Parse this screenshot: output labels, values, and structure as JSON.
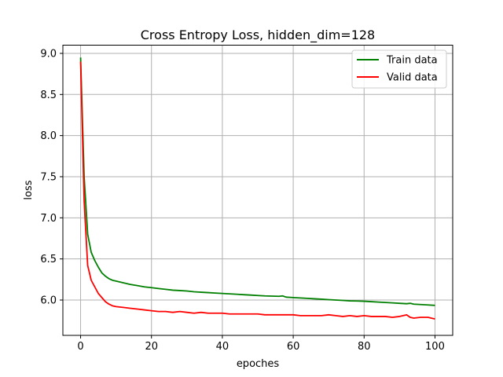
{
  "chart_data": {
    "type": "line",
    "title": "Cross Entropy Loss, hidden_dim=128",
    "xlabel": "epoches",
    "ylabel": "loss",
    "xlim": [
      -5,
      105
    ],
    "ylim": [
      5.57,
      9.1
    ],
    "x_ticks": [
      0,
      20,
      40,
      60,
      80,
      100
    ],
    "y_ticks": [
      6.0,
      6.5,
      7.0,
      7.5,
      8.0,
      8.5,
      9.0
    ],
    "x_tick_labels": [
      "0",
      "20",
      "40",
      "60",
      "80",
      "100"
    ],
    "y_tick_labels": [
      "6.0",
      "6.5",
      "7.0",
      "7.5",
      "8.0",
      "8.5",
      "9.0"
    ],
    "grid": true,
    "legend_position": "top-right",
    "series": [
      {
        "name": "Train data",
        "color": "#008000",
        "x": [
          0,
          1,
          2,
          3,
          4,
          5,
          6,
          7,
          8,
          9,
          10,
          12,
          14,
          16,
          18,
          20,
          22,
          24,
          26,
          28,
          30,
          32,
          34,
          36,
          38,
          40,
          42,
          44,
          46,
          48,
          50,
          52,
          54,
          56,
          57,
          58,
          60,
          62,
          64,
          66,
          68,
          70,
          72,
          74,
          76,
          78,
          80,
          82,
          84,
          86,
          88,
          90,
          92,
          93,
          94,
          96,
          98,
          100
        ],
        "y": [
          8.95,
          7.5,
          6.8,
          6.58,
          6.48,
          6.4,
          6.33,
          6.29,
          6.26,
          6.24,
          6.23,
          6.21,
          6.19,
          6.175,
          6.16,
          6.15,
          6.14,
          6.13,
          6.12,
          6.115,
          6.11,
          6.1,
          6.095,
          6.09,
          6.085,
          6.08,
          6.075,
          6.07,
          6.065,
          6.06,
          6.055,
          6.05,
          6.048,
          6.045,
          6.05,
          6.035,
          6.03,
          6.025,
          6.02,
          6.015,
          6.01,
          6.005,
          6.0,
          5.995,
          5.99,
          5.988,
          5.985,
          5.98,
          5.975,
          5.97,
          5.965,
          5.96,
          5.955,
          5.96,
          5.95,
          5.945,
          5.94,
          5.935
        ]
      },
      {
        "name": "Valid data",
        "color": "#ff0000",
        "x": [
          0,
          1,
          2,
          3,
          4,
          5,
          6,
          7,
          8,
          9,
          10,
          12,
          14,
          16,
          18,
          20,
          22,
          24,
          26,
          28,
          30,
          32,
          34,
          36,
          38,
          40,
          42,
          44,
          46,
          48,
          50,
          52,
          54,
          56,
          58,
          60,
          62,
          64,
          66,
          68,
          70,
          72,
          74,
          76,
          78,
          80,
          82,
          84,
          86,
          88,
          90,
          92,
          93,
          94,
          96,
          98,
          100
        ],
        "y": [
          8.9,
          7.2,
          6.42,
          6.24,
          6.16,
          6.08,
          6.03,
          5.98,
          5.95,
          5.93,
          5.92,
          5.91,
          5.9,
          5.89,
          5.88,
          5.87,
          5.86,
          5.86,
          5.85,
          5.86,
          5.85,
          5.84,
          5.85,
          5.84,
          5.84,
          5.84,
          5.83,
          5.83,
          5.83,
          5.83,
          5.83,
          5.82,
          5.82,
          5.82,
          5.82,
          5.82,
          5.81,
          5.81,
          5.81,
          5.81,
          5.82,
          5.81,
          5.8,
          5.81,
          5.8,
          5.81,
          5.8,
          5.8,
          5.8,
          5.79,
          5.8,
          5.82,
          5.79,
          5.78,
          5.79,
          5.79,
          5.77
        ]
      }
    ]
  }
}
